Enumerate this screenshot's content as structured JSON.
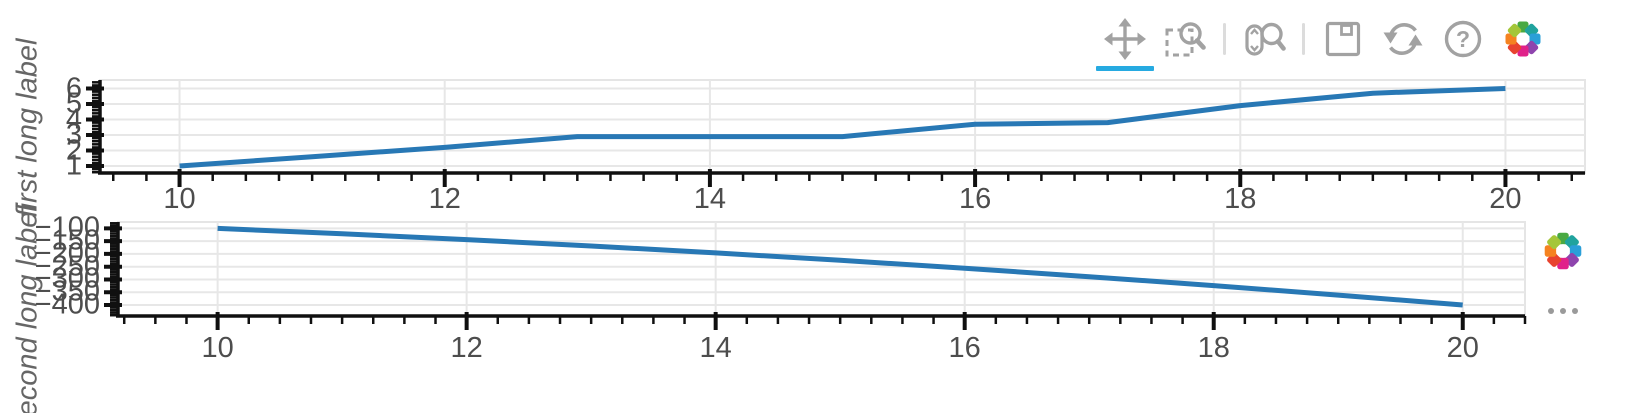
{
  "toolbar": {
    "active_tool": "pan",
    "tools": [
      {
        "id": "pan",
        "icon": "move-icon"
      },
      {
        "id": "box-zoom",
        "icon": "box-zoom-icon"
      },
      {
        "id": "wheel-zoom",
        "icon": "wheel-zoom-icon"
      },
      {
        "id": "save",
        "icon": "save-icon"
      },
      {
        "id": "reset",
        "icon": "reset-icon"
      },
      {
        "id": "help",
        "icon": "help-icon"
      }
    ],
    "logo": "bokeh-logo",
    "overflow_icon": "ellipsis-icon"
  },
  "chart_data": [
    {
      "type": "line",
      "title": "",
      "xlabel": "",
      "ylabel": "first long label",
      "x": [
        10,
        11,
        12,
        13,
        14,
        15,
        16,
        17,
        18,
        19,
        20
      ],
      "y": [
        1,
        1.6,
        2.2,
        2.9,
        2.9,
        2.9,
        3.7,
        3.8,
        4.9,
        5.7,
        6.0
      ],
      "x_ticks": [
        10,
        12,
        14,
        16,
        18,
        20
      ],
      "y_ticks": [
        1,
        2,
        3,
        4,
        5,
        6
      ],
      "x_range": [
        9.4,
        20.6
      ],
      "y_range": [
        0.55,
        6.55
      ],
      "x_minor_step": 0.25,
      "y_minor_step": 0.2,
      "grid": true,
      "legend": null,
      "line_color": "#2878b5",
      "line_width": 5
    },
    {
      "type": "line",
      "title": "",
      "xlabel": "",
      "ylabel": "second long label",
      "x": [
        10,
        11,
        12,
        13,
        14,
        15,
        16,
        17,
        18,
        19,
        20
      ],
      "y": [
        -100,
        -121,
        -144,
        -169,
        -196,
        -225,
        -256,
        -289,
        -324,
        -361,
        -400
      ],
      "x_ticks": [
        10,
        12,
        14,
        16,
        18,
        20
      ],
      "y_ticks": [
        -100,
        -150,
        -200,
        -250,
        -300,
        -350,
        -400
      ],
      "x_range": [
        9.2,
        20.5
      ],
      "y_range": [
        -443,
        -75
      ],
      "x_minor_step": 0.25,
      "y_minor_step": 10,
      "grid": true,
      "legend": null,
      "line_color": "#2878b5",
      "line_width": 5
    }
  ],
  "colors": {
    "axis_line": "#101010",
    "grid_line": "#e7e7e7",
    "frame_outline": "#e5e5e5",
    "tick_label": "#4d4d4d",
    "axis_label": "#666666",
    "icon_gray": "#a2a2a2",
    "active_highlight": "#26aae1",
    "series_blue": "#2878b5"
  }
}
